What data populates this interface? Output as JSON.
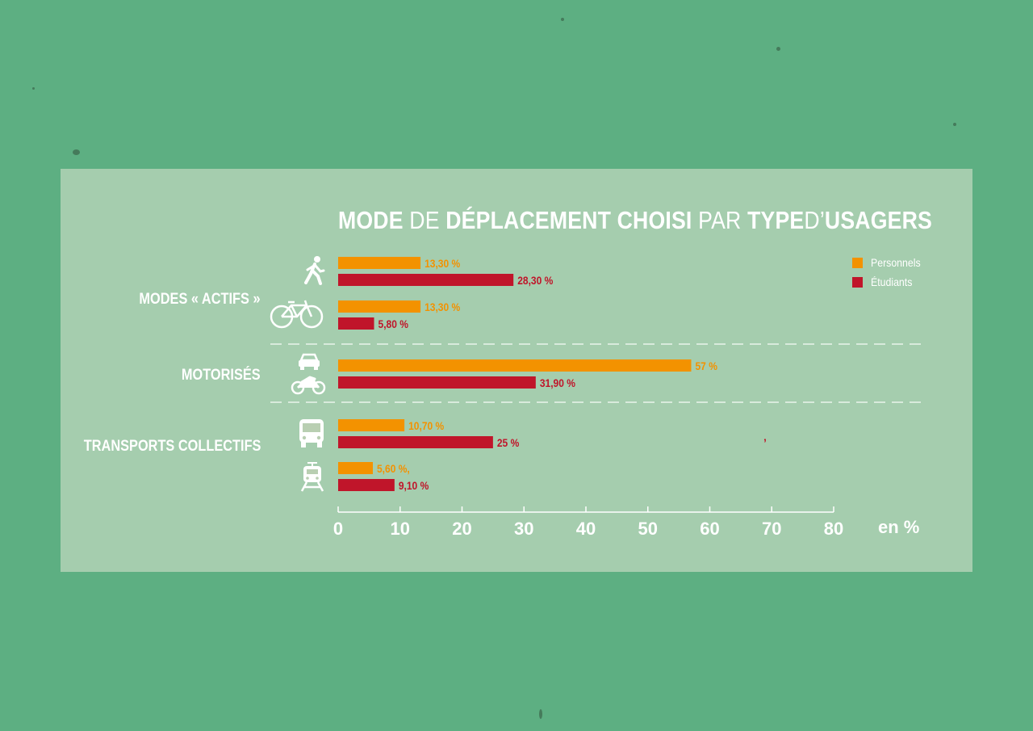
{
  "colors": {
    "background": "#5daf82",
    "panel": "#e8e8d6",
    "personnels": "#f39200",
    "etudiants": "#c0152a",
    "text": "#ffffff"
  },
  "title": {
    "w1": "MODE",
    "w2": "DE",
    "w3": "DÉPLACEMENT CHOISI",
    "w4": "PAR",
    "w5": "TYPE",
    "w6": "D’",
    "w7": "USAGERS"
  },
  "groups": {
    "actifs": "MODES « ACTIFS »",
    "motorises": "MOTORISÉS",
    "collectifs": "TRANSPORTS COLLECTIFS"
  },
  "legend": {
    "personnels": "Personnels",
    "etudiants": "Étudiants"
  },
  "unit": "en %",
  "stray_mark": "’",
  "chart_data": {
    "type": "bar",
    "orientation": "horizontal",
    "title": "MODE DE DÉPLACEMENT CHOISI PAR TYPE D’USAGERS",
    "xlabel": "en %",
    "xlim": [
      0,
      80
    ],
    "xticks": [
      0,
      10,
      20,
      30,
      40,
      50,
      60,
      70,
      80
    ],
    "legend_position": "top-right",
    "categories": [
      {
        "group": "MODES « ACTIFS »",
        "icon": "pedestrian-icon"
      },
      {
        "group": "MODES « ACTIFS »",
        "icon": "bicycle-icon"
      },
      {
        "group": "MOTORISÉS",
        "icon": "car-motorbike-icon"
      },
      {
        "group": "TRANSPORTS COLLECTIFS",
        "icon": "bus-icon"
      },
      {
        "group": "TRANSPORTS COLLECTIFS",
        "icon": "tram-icon"
      }
    ],
    "series": [
      {
        "name": "Personnels",
        "values": [
          13.3,
          13.3,
          57,
          10.7,
          5.6
        ],
        "labels": [
          "13,30 %",
          "13,30 %",
          "57 %",
          "10,70 %",
          "5,60 %,"
        ]
      },
      {
        "name": "Étudiants",
        "values": [
          28.3,
          5.8,
          31.9,
          25,
          9.1
        ],
        "labels": [
          "28,30 %",
          "5,80 %",
          "31,90 %",
          "25 %",
          "9,10 %"
        ]
      }
    ]
  }
}
